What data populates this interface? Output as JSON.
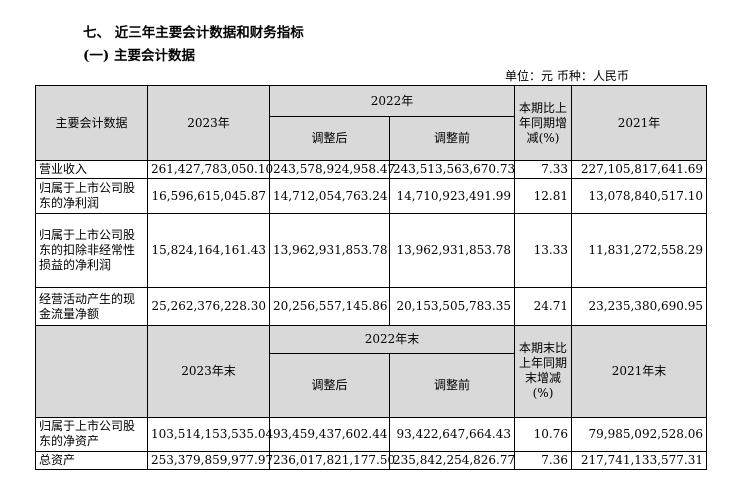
{
  "heading": {
    "section": "七、 近三年主要会计数据和财务指标",
    "subsection": "(一) 主要会计数据"
  },
  "unit_line": "单位：元 币种：人民币",
  "table1": {
    "header": {
      "col_item": "主要会计数据",
      "col_2023": "2023年",
      "col_2022": "2022年",
      "col_adjusted_after": "调整后",
      "col_adjusted_before": "调整前",
      "col_change": "本期比上年同期增减(%)",
      "col_2021": "2021年"
    },
    "rows": [
      {
        "label": "营业收入",
        "v2023": "261,427,783,050.10",
        "v2022_after": "243,578,924,958.47",
        "v2022_before": "243,513,563,670.73",
        "change": "7.33",
        "v2021": "227,105,817,641.69"
      },
      {
        "label": "归属于上市公司股东的净利润",
        "v2023": "16,596,615,045.87",
        "v2022_after": "14,712,054,763.24",
        "v2022_before": "14,710,923,491.99",
        "change": "12.81",
        "v2021": "13,078,840,517.10"
      },
      {
        "label": "归属于上市公司股东的扣除非经常性损益的净利润",
        "v2023": "15,824,164,161.43",
        "v2022_after": "13,962,931,853.78",
        "v2022_before": "13,962,931,853.78",
        "change": "13.33",
        "v2021": "11,831,272,558.29"
      },
      {
        "label": "经营活动产生的现金流量净额",
        "v2023": "25,262,376,228.30",
        "v2022_after": "20,256,557,145.86",
        "v2022_before": "20,153,505,783.35",
        "change": "24.71",
        "v2021": "23,235,380,690.95"
      }
    ]
  },
  "table2": {
    "header": {
      "col_2023": "2023年末",
      "col_2022": "2022年末",
      "col_adjusted_after": "调整后",
      "col_adjusted_before": "调整前",
      "col_change": "本期末比上年同期末增减(%)",
      "col_2021": "2021年末"
    },
    "rows": [
      {
        "label": "归属于上市公司股东的净资产",
        "v2023": "103,514,153,535.04",
        "v2022_after": "93,459,437,602.44",
        "v2022_before": "93,422,647,664.43",
        "change": "10.76",
        "v2021": "79,985,092,528.06"
      },
      {
        "label": "总资产",
        "v2023": "253,379,859,977.97",
        "v2022_after": "236,017,821,177.50",
        "v2022_before": "235,842,254,826.77",
        "change": "7.36",
        "v2021": "217,741,133,577.31"
      }
    ]
  }
}
